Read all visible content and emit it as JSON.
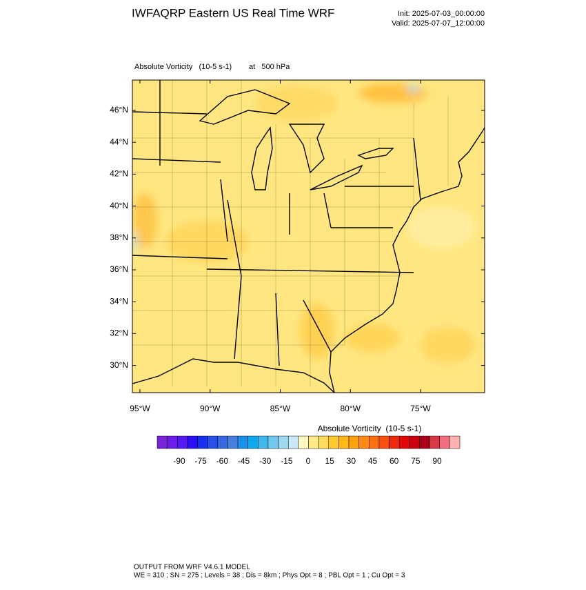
{
  "header": {
    "title": "IWFAQRP Eastern US Real Time WRF",
    "init": "Init: 2025-07-03_00:00:00",
    "valid": "Valid: 2025-07-07_12:00:00"
  },
  "map": {
    "field": "Absolute Vorticity   (10-5 s-1)",
    "level": "at   500 hPa",
    "lat_ticks": [
      {
        "value": 46,
        "label": "46°N"
      },
      {
        "value": 44,
        "label": "44°N"
      },
      {
        "value": 42,
        "label": "42°N"
      },
      {
        "value": 40,
        "label": "40°N"
      },
      {
        "value": 38,
        "label": "38°N"
      },
      {
        "value": 36,
        "label": "36°N"
      },
      {
        "value": 34,
        "label": "34°N"
      },
      {
        "value": 32,
        "label": "32°N"
      },
      {
        "value": 30,
        "label": "30°N"
      }
    ],
    "lon_ticks": [
      {
        "value": 95,
        "label": "95°W"
      },
      {
        "value": 90,
        "label": "90°W"
      },
      {
        "value": 85,
        "label": "85°W"
      },
      {
        "value": 80,
        "label": "80°W"
      },
      {
        "value": 75,
        "label": "75°W"
      }
    ]
  },
  "colorbar": {
    "label": "Absolute Vorticity  (10-5 s-1)",
    "ticks": [
      -90,
      -75,
      -60,
      -45,
      -30,
      -15,
      0,
      15,
      30,
      45,
      60,
      75,
      90
    ],
    "colors": [
      "#7a22d8",
      "#6a1ee8",
      "#5418f0",
      "#2a10f4",
      "#1830f0",
      "#2850e8",
      "#3868e0",
      "#4880e0",
      "#1a90e8",
      "#10a8ec",
      "#40b8ee",
      "#70c8f0",
      "#a0d8f0",
      "#c8e8f6",
      "#fff8c0",
      "#ffe88a",
      "#ffdc5c",
      "#ffcc30",
      "#ffb818",
      "#ffa010",
      "#ff8810",
      "#ff7010",
      "#f85010",
      "#f02a10",
      "#e00808",
      "#c80010",
      "#a80018",
      "#d83848",
      "#f07080",
      "#ffb0b0"
    ]
  },
  "footer": {
    "line1": "OUTPUT FROM WRF V4.6.1 MODEL",
    "line2": "WE = 310 ; SN = 275 ; Levels = 38 ; Dis = 8km ; Phys Opt = 8 ; PBL Opt = 1 ; Cu Opt = 3"
  }
}
